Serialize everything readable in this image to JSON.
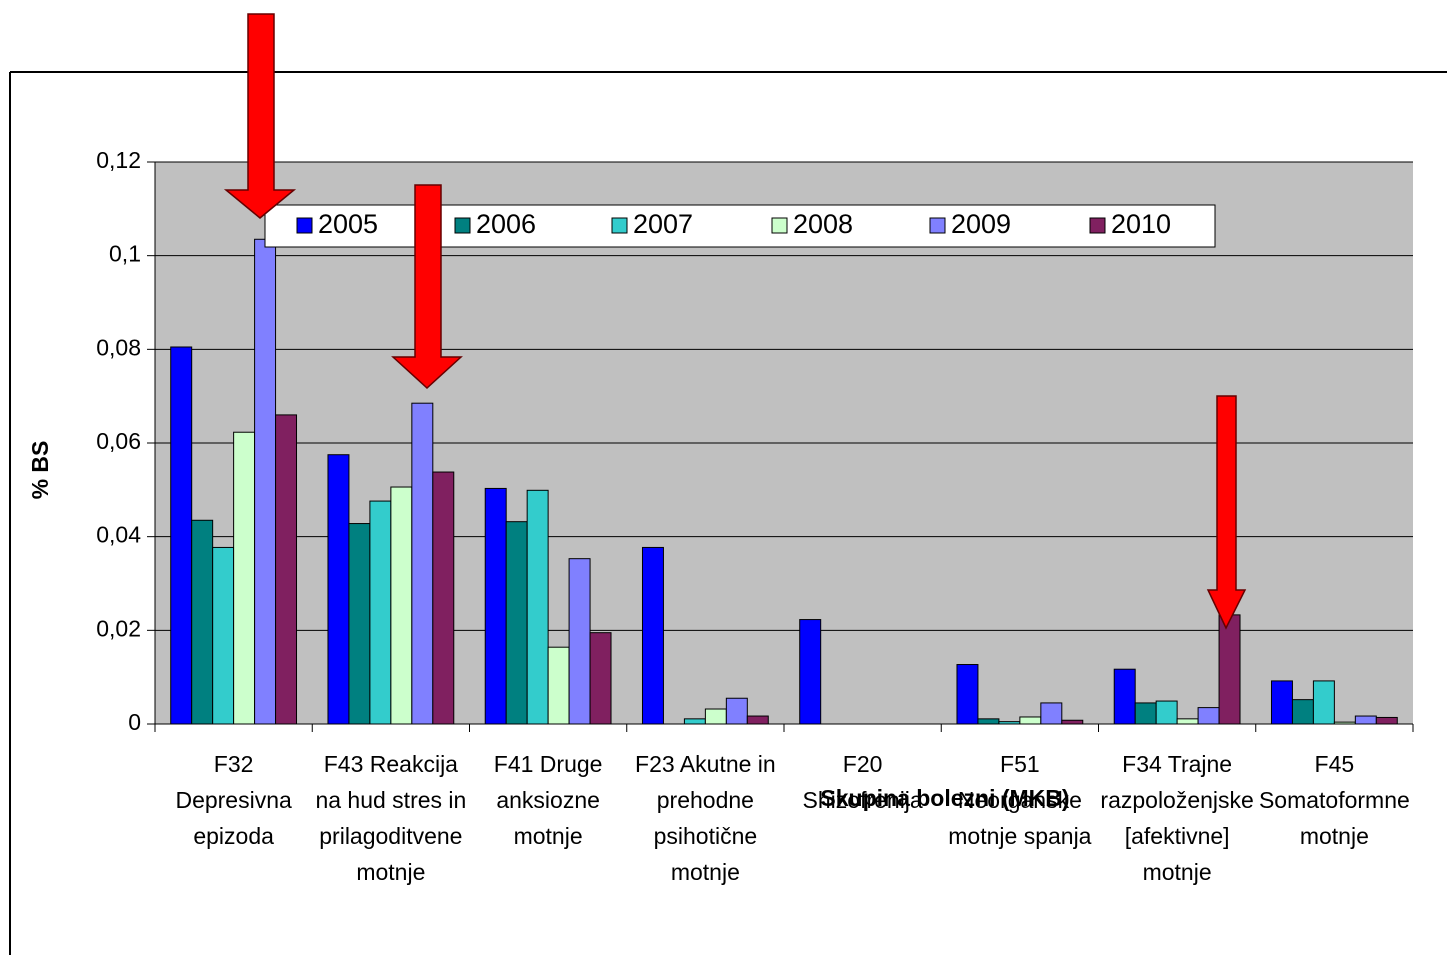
{
  "chart_data": {
    "type": "bar",
    "x_label": "Skupina bolezni (MKB)",
    "y_label": "% BS",
    "categories": [
      "F32\nDepresivna\nepizoda",
      "F43  Reakcija\nna hud stres in\nprilagoditvene\nmotnje",
      "F41   Druge\nanksiozne\nmotnje",
      "F23  Akutne in\nprehodne\npsihotične\nmotnje",
      "F20\nShizofrenija",
      "F51\nNeorganske\nmotnje spanja",
      "F34 Trajne\nrazpoloženjske\n[afektivne]\nmotnje",
      "F45\nSomatoformne\nmotnje"
    ],
    "series": [
      {
        "name": "2005",
        "color": "#0000ff",
        "values": [
          0.0805,
          0.0575,
          0.0503,
          0.0377,
          0.0223,
          0.0127,
          0.0117,
          0.0092
        ]
      },
      {
        "name": "2006",
        "color": "#008080",
        "values": [
          0.0435,
          0.0428,
          0.0432,
          0,
          0,
          0.0011,
          0.0045,
          0.0052
        ]
      },
      {
        "name": "2007",
        "color": "#33cccc",
        "values": [
          0.0377,
          0.0476,
          0.0499,
          0.0011,
          0,
          0.0005,
          0.0049,
          0.0092
        ]
      },
      {
        "name": "2008",
        "color": "#ccffcc",
        "values": [
          0.0623,
          0.0506,
          0.0164,
          0.0032,
          0,
          0.0015,
          0.0011,
          0.0004
        ]
      },
      {
        "name": "2009",
        "color": "#8080ff",
        "values": [
          0.1035,
          0.0685,
          0.0353,
          0.0055,
          0,
          0.0045,
          0.0035,
          0.0017
        ]
      },
      {
        "name": "2010",
        "color": "#802060",
        "values": [
          0.066,
          0.0538,
          0.0195,
          0.0017,
          0,
          0.0008,
          0.0233,
          0.0014
        ]
      }
    ],
    "ylim": [
      0,
      0.12
    ],
    "yticks": [
      0,
      {
        "value": 0.02,
        "label": "0,02"
      },
      {
        "value": 0.04,
        "label": "0,04"
      },
      {
        "value": 0.06,
        "label": "0,06"
      },
      {
        "value": 0.08,
        "label": "0,08"
      },
      {
        "value": 0.1,
        "label": "0,1"
      },
      {
        "value": 0.12,
        "label": "0,12"
      }
    ],
    "grid": true,
    "legend": "top"
  }
}
